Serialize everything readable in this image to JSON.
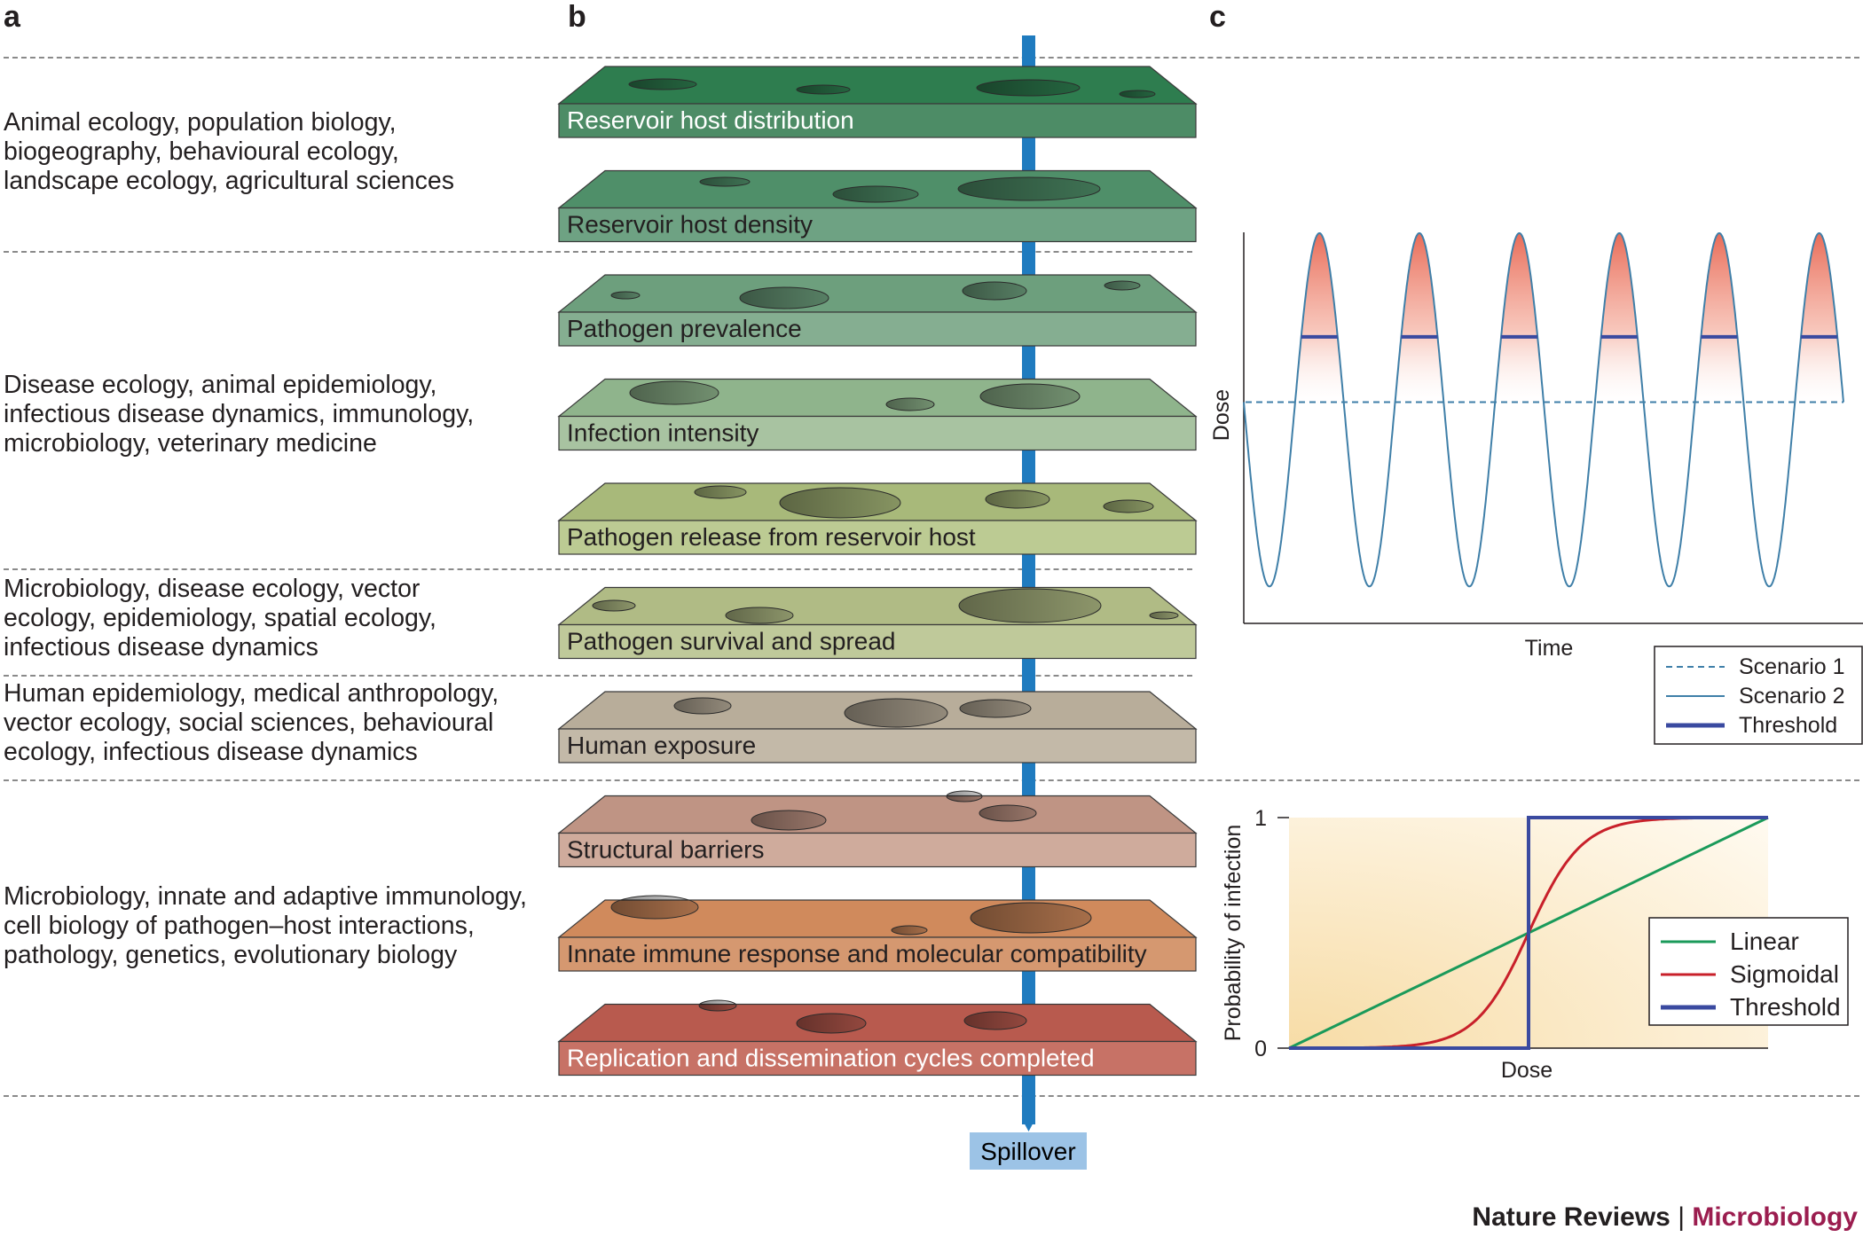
{
  "panels": {
    "a": "a",
    "b": "b",
    "c": "c"
  },
  "disciplines": [
    "Animal ecology, population biology, biogeography, behavioural ecology, landscape ecology, agricultural sciences",
    "Disease ecology, animal epidemiology, infectious disease dynamics, immunology, microbiology, veterinary medicine",
    "Microbiology, disease ecology, vector ecology, epidemiology, spatial ecology, infectious disease dynamics",
    "Human epidemiology, medical anthropology, vector ecology, social sciences, behavioural ecology, infectious disease dynamics",
    "Microbiology, innate and adaptive immunology, cell biology of pathogen–host interactions, pathology, genetics, evolutionary biology"
  ],
  "layers": [
    {
      "label": "Reservoir host distribution",
      "top": "#2e7d4f",
      "side": "#4d8c66",
      "text": "#ffffff"
    },
    {
      "label": "Reservoir host density",
      "top": "#4f8f69",
      "side": "#6ea283",
      "text": "#231f20"
    },
    {
      "label": "Pathogen prevalence",
      "top": "#6d9f7d",
      "side": "#85ae91",
      "text": "#231f20"
    },
    {
      "label": "Infection intensity",
      "top": "#8fb48c",
      "side": "#a8c3a1",
      "text": "#231f20"
    },
    {
      "label": "Pathogen release from reservoir host",
      "top": "#a8b97a",
      "side": "#bccb93",
      "text": "#231f20"
    },
    {
      "label": "Pathogen survival and spread",
      "top": "#b0bb85",
      "side": "#bfc99a",
      "text": "#231f20"
    },
    {
      "label": "Human exposure",
      "top": "#b8ad9a",
      "side": "#c3b9a8",
      "text": "#231f20"
    },
    {
      "label": "Structural barriers",
      "top": "#bf9484",
      "side": "#cfab9c",
      "text": "#231f20"
    },
    {
      "label": "Innate immune response and molecular compatibility",
      "top": "#d08a5c",
      "side": "#d59870",
      "text": "#231f20"
    },
    {
      "label": "Replication and dissemination cycles completed",
      "top": "#b85a4e",
      "side": "#c77266",
      "text": "#ffffff"
    }
  ],
  "spillover": "Spillover",
  "colors": {
    "pipe": "#1f7bbf",
    "spillover_box": "#9cc3e6",
    "linear": "#1a9a5a",
    "sigmoidal": "#c8202a",
    "threshold": "#3a4aa0",
    "scenario": "#3f7fa8"
  },
  "chart_data": [
    {
      "type": "line",
      "xlabel": "Time",
      "ylabel": "Dose",
      "series": [
        {
          "name": "Scenario 1",
          "style": "dashed"
        },
        {
          "name": "Scenario 2",
          "style": "solid"
        },
        {
          "name": "Threshold",
          "style": "thick"
        }
      ],
      "scenario2_wave": {
        "cycles": 6,
        "min": 0.05,
        "max": 0.97
      },
      "scenario1_level": 0.53,
      "threshold_level": 0.7,
      "fill": "gradient red above threshold"
    },
    {
      "type": "line",
      "xlabel": "Dose",
      "ylabel": "Probability of infection",
      "y_ticks": [
        "0",
        "1"
      ],
      "ylim": [
        0,
        1
      ],
      "xlim": [
        0,
        1
      ],
      "series": [
        {
          "name": "Linear",
          "x": [
            0,
            1
          ],
          "y": [
            0,
            1
          ]
        },
        {
          "name": "Sigmoidal",
          "x": [
            0,
            0.1,
            0.2,
            0.3,
            0.4,
            0.45,
            0.5,
            0.55,
            0.6,
            0.7,
            0.8,
            0.9,
            1.0
          ],
          "y": [
            0,
            0.003,
            0.01,
            0.03,
            0.1,
            0.22,
            0.5,
            0.78,
            0.9,
            0.97,
            0.99,
            0.997,
            1
          ]
        },
        {
          "name": "Threshold",
          "x": [
            0,
            0.5,
            0.5,
            1
          ],
          "y": [
            0,
            0,
            1,
            1
          ]
        }
      ]
    }
  ],
  "footer": {
    "brand": "Nature Reviews",
    "separator": "|",
    "journal": "Microbiology"
  }
}
